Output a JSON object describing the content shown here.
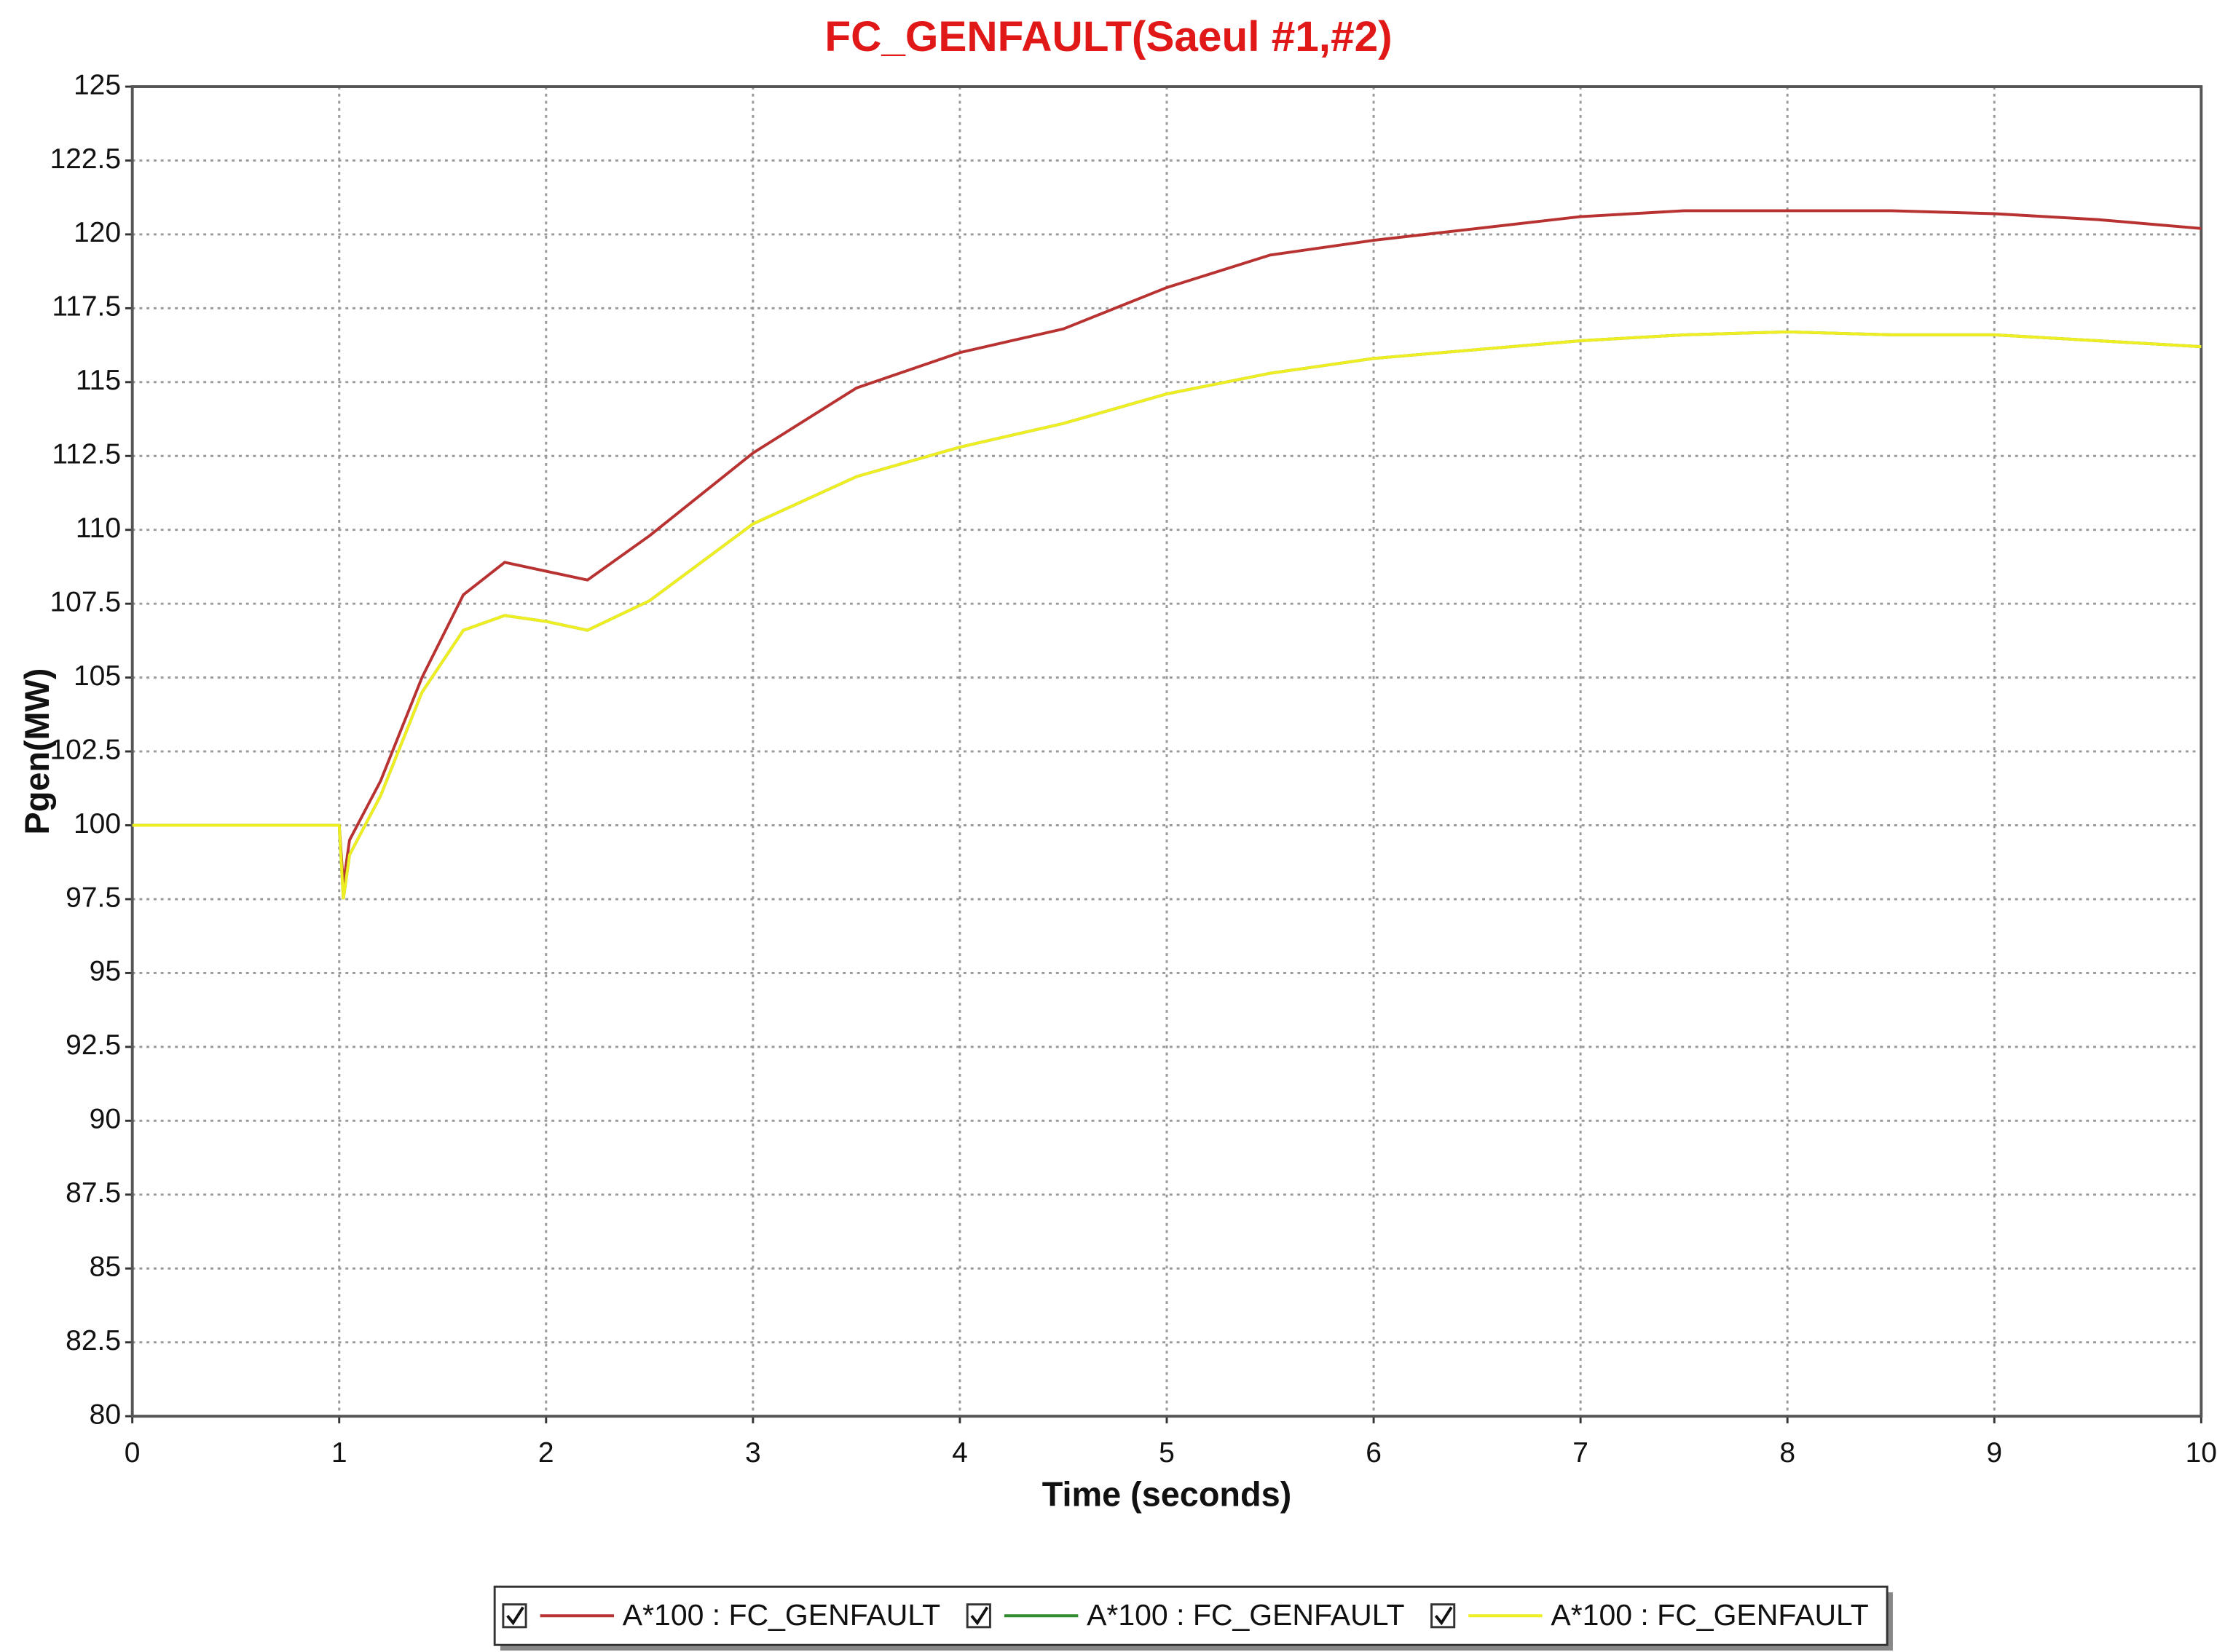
{
  "chart_data": {
    "type": "line",
    "title": "FC_GENFAULT(Saeul #1,#2)",
    "xlabel": "Time (seconds)",
    "ylabel": "Pgen(MW)",
    "x": [
      0,
      0.5,
      1,
      1.02,
      1.05,
      1.2,
      1.4,
      1.6,
      1.8,
      2,
      2.2,
      2.5,
      3,
      3.5,
      4,
      4.5,
      5,
      5.5,
      6,
      6.5,
      7,
      7.5,
      8,
      8.5,
      9,
      9.5,
      10
    ],
    "series": [
      {
        "name": "A*100 : FC_GENFAULT",
        "color": "#b83232",
        "values": [
          100,
          100,
          100,
          98,
          99.5,
          101.5,
          105,
          107.8,
          108.9,
          108.6,
          108.3,
          109.8,
          112.6,
          114.8,
          116,
          116.8,
          118.2,
          119.3,
          119.8,
          120.2,
          120.6,
          120.8,
          120.8,
          120.8,
          120.7,
          120.5,
          120.2
        ]
      },
      {
        "name": "A*100 : FC_GENFAULT",
        "color": "#2e8b2e",
        "values": [
          100,
          100,
          100,
          97.5,
          99,
          101,
          104.5,
          106.6,
          107.1,
          106.9,
          106.6,
          107.6,
          110.2,
          111.8,
          112.8,
          113.6,
          114.6,
          115.3,
          115.8,
          116.1,
          116.4,
          116.6,
          116.7,
          116.6,
          116.6,
          116.4,
          116.2
        ]
      },
      {
        "name": "A*100 : FC_GENFAULT",
        "color": "#eeee22",
        "values": [
          100,
          100,
          100,
          97.5,
          99,
          101,
          104.5,
          106.6,
          107.1,
          106.9,
          106.6,
          107.6,
          110.2,
          111.8,
          112.8,
          113.6,
          114.6,
          115.3,
          115.8,
          116.1,
          116.4,
          116.6,
          116.7,
          116.6,
          116.6,
          116.4,
          116.2
        ]
      }
    ],
    "xlim": [
      0,
      10
    ],
    "xticks": [
      0,
      1,
      2,
      3,
      4,
      5,
      6,
      7,
      8,
      9,
      10
    ],
    "ylim": [
      80,
      125
    ],
    "yticks": [
      80,
      82.5,
      85,
      87.5,
      90,
      92.5,
      95,
      97.5,
      100,
      102.5,
      105,
      107.5,
      110,
      112.5,
      115,
      117.5,
      120,
      122.5,
      125
    ],
    "grid": true,
    "legend": "bottom"
  }
}
